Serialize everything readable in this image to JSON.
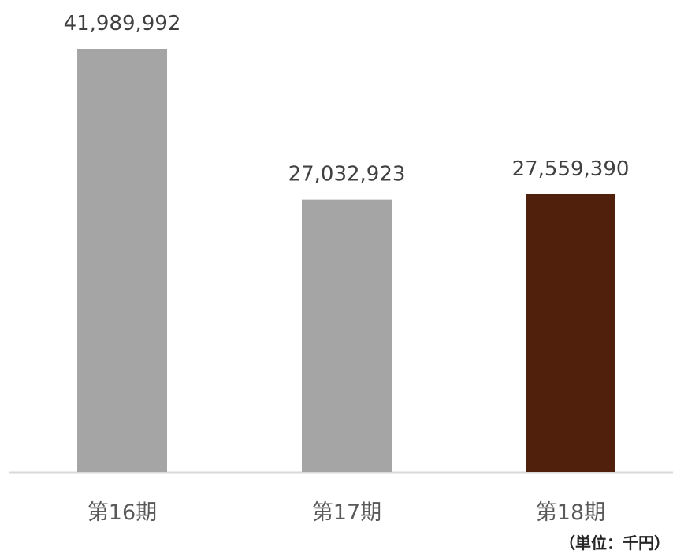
{
  "chart_data": {
    "type": "bar",
    "categories": [
      "第16期",
      "第17期",
      "第18期"
    ],
    "values": [
      41989992,
      27032923,
      27559390
    ],
    "value_labels": [
      "41,989,992",
      "27,032,923",
      "27,559,390"
    ],
    "bar_colors": [
      "#a5a5a5",
      "#a5a5a5",
      "#50200c"
    ],
    "axis_color": "#d9d9d9",
    "ylim": [
      0,
      41989992
    ],
    "grid": false,
    "legend": "none"
  },
  "unit_note": "（単位：千円）"
}
